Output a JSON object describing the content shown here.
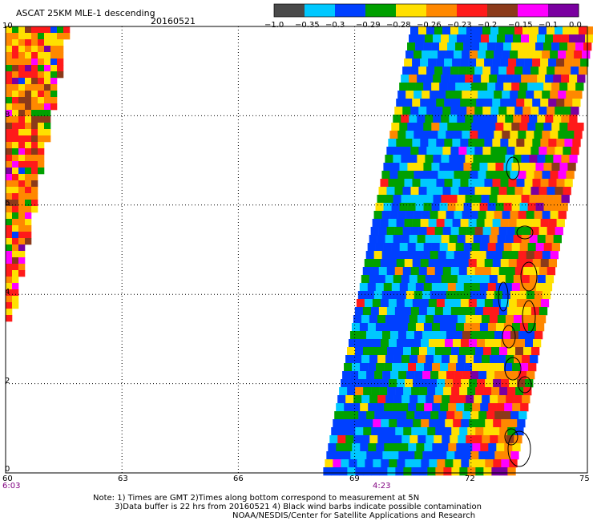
{
  "title": "ASCAT 25KM MLE-1 descending",
  "date": "20160521",
  "colorbar": {
    "labels": [
      "−1.0",
      "−0.35",
      "−0.3",
      "−0.29",
      "−0.28",
      "−0.26",
      "−0.23",
      "−0.2",
      "−0.15",
      "−0.1",
      "0.0"
    ],
    "colors": [
      "#4a4a4a",
      "#00c8ff",
      "#0040ff",
      "#00a000",
      "#ffe000",
      "#ff8800",
      "#ff1a1a",
      "#8b3a1a",
      "#ff00ff",
      "#7a00a0"
    ]
  },
  "map": {
    "lon_ticks": [
      "60",
      "63",
      "66",
      "69",
      "72",
      "75"
    ],
    "lat_ticks": [
      "0",
      "2",
      "4",
      "6",
      "8",
      "10"
    ],
    "lon_range": [
      60,
      75
    ],
    "lat_range": [
      0,
      10
    ],
    "time_labels": [
      {
        "lon": 60,
        "text": "6:03"
      },
      {
        "lon": 69.7,
        "text": "4:23"
      }
    ],
    "gridlines": "dotted"
  },
  "notes": [
    "Note: 1) Times are GMT 2)Times along bottom correspond to measurement at 5N",
    "3)Data buffer is 22 hrs from 20160521 4) Black wind barbs indicate possible contamination",
    "NOAA/NESDIS/Center for Satellite Applications and Research"
  ]
}
